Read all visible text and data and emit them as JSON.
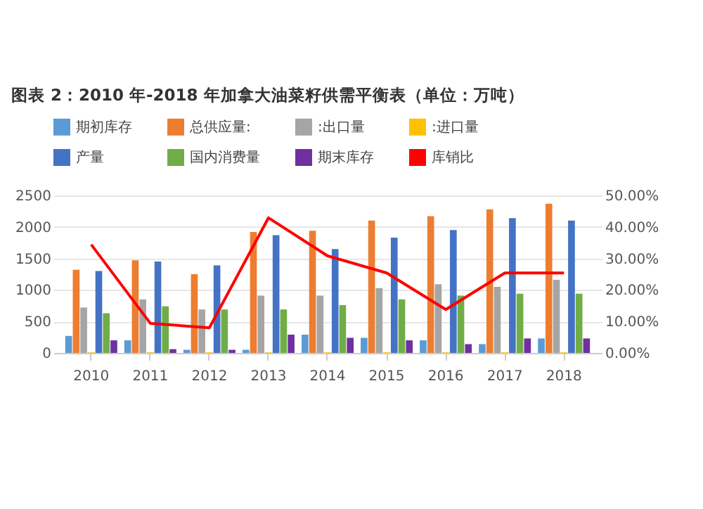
{
  "chart_data": {
    "type": "bar",
    "title": "图表 2：2010 年-2018 年加拿大油菜籽供需平衡表（单位：万吨）",
    "categories": [
      "2010",
      "2011",
      "2012",
      "2013",
      "2014",
      "2015",
      "2016",
      "2017",
      "2018"
    ],
    "series": [
      {
        "name": "期初库存",
        "color": "#5b9bd5",
        "values": [
          270,
          200,
          50,
          50,
          290,
          240,
          200,
          140,
          230
        ]
      },
      {
        "name": "总供应量:",
        "color": "#ed7d31",
        "values": [
          1320,
          1470,
          1250,
          1920,
          1940,
          2100,
          2170,
          2280,
          2370
        ]
      },
      {
        "name": ":出口量",
        "color": "#a5a5a5",
        "values": [
          720,
          850,
          690,
          910,
          910,
          1030,
          1090,
          1050,
          1160
        ]
      },
      {
        "name": ":进口量",
        "color": "#ffc000",
        "values": [
          10,
          10,
          10,
          10,
          10,
          10,
          10,
          10,
          10
        ]
      },
      {
        "name": "产量",
        "color": "#4472c4",
        "values": [
          1300,
          1450,
          1390,
          1870,
          1650,
          1830,
          1950,
          2140,
          2100
        ]
      },
      {
        "name": "国内消费量",
        "color": "#70ad47",
        "values": [
          630,
          740,
          690,
          690,
          760,
          850,
          910,
          940,
          940
        ]
      },
      {
        "name": "期末库存",
        "color": "#7030a0",
        "values": [
          200,
          60,
          50,
          290,
          240,
          200,
          140,
          230,
          230
        ]
      },
      {
        "name": "库销比",
        "type": "line",
        "axis": "y2",
        "color": "#ff0000",
        "values": [
          34.4,
          9.4,
          8.0,
          42.9,
          30.8,
          25.4,
          13.8,
          25.4,
          25.4
        ]
      }
    ],
    "ylim": [
      0,
      2500
    ],
    "yticks": [
      0,
      500,
      1000,
      1500,
      2000,
      2500
    ],
    "y2lim": [
      0,
      50
    ],
    "y2ticks": [
      {
        "value": 0,
        "label": "0.00%"
      },
      {
        "value": 10,
        "label": "10.00%"
      },
      {
        "value": 20,
        "label": "20.00%"
      },
      {
        "value": 30,
        "label": "30.00%"
      },
      {
        "value": 40,
        "label": "40.00%"
      },
      {
        "value": 50,
        "label": "50.00%"
      }
    ],
    "grid": "y",
    "legend": "top",
    "marker": "none",
    "line_style": "solid"
  }
}
